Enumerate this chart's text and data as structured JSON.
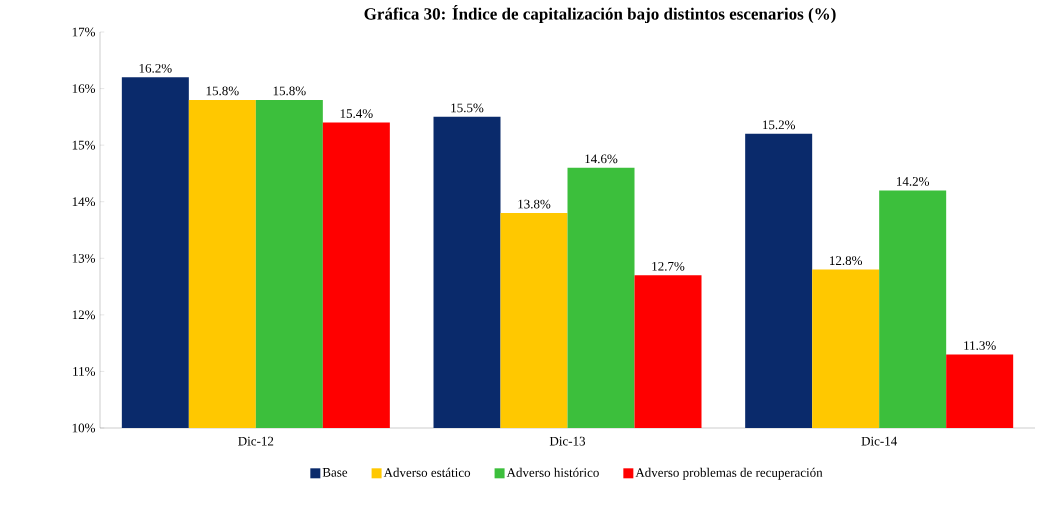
{
  "chart_data": {
    "type": "bar",
    "title": "Gráfica 30: Índice de capitalización bajo distintos escenarios (%)",
    "categories": [
      "Dic-12",
      "Dic-13",
      "Dic-14"
    ],
    "series": [
      {
        "name": "Base",
        "color": "#0a2a6b",
        "values": [
          16.2,
          15.5,
          15.2
        ],
        "value_labels": [
          "16.2%",
          "15.5%",
          "15.2%"
        ]
      },
      {
        "name": "Adverso estático",
        "color": "#ffc800",
        "values": [
          15.8,
          13.8,
          12.8
        ],
        "value_labels": [
          "15.8%",
          "13.8%",
          "12.8%"
        ]
      },
      {
        "name": "Adverso histórico",
        "color": "#3cbf3c",
        "values": [
          15.8,
          14.6,
          14.2
        ],
        "value_labels": [
          "15.8%",
          "14.6%",
          "14.2%"
        ]
      },
      {
        "name": "Adverso problemas de recuperación",
        "color": "#ff0000",
        "values": [
          15.4,
          12.7,
          11.3
        ],
        "value_labels": [
          "15.4%",
          "12.7%",
          "11.3%"
        ]
      }
    ],
    "ylim": [
      10,
      17
    ],
    "yticks": [
      {
        "value": 10,
        "label": "10%"
      },
      {
        "value": 11,
        "label": "11%"
      },
      {
        "value": 12,
        "label": "12%"
      },
      {
        "value": 13,
        "label": "13%"
      },
      {
        "value": 14,
        "label": "14%"
      },
      {
        "value": 15,
        "label": "15%"
      },
      {
        "value": 16,
        "label": "16%"
      },
      {
        "value": 17,
        "label": "17%"
      }
    ],
    "grid": false,
    "legend": "bottom"
  }
}
